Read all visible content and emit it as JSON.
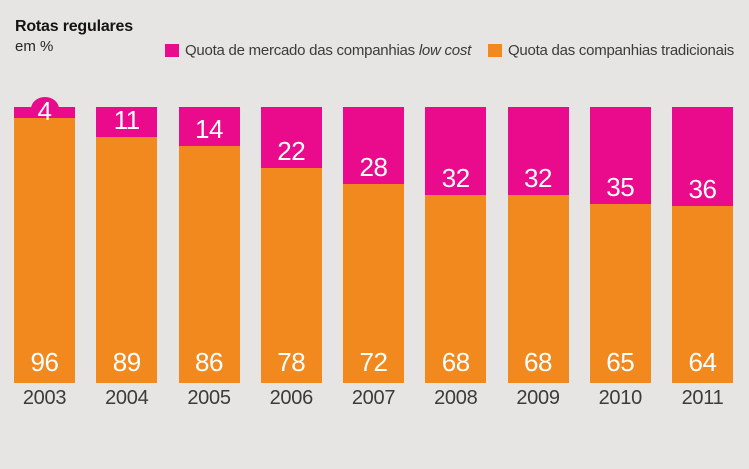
{
  "header": {
    "title": "Rotas regulares",
    "subtitle": "em %"
  },
  "legend": {
    "lowcost": {
      "text": "Quota de mercado das companhias ",
      "italic": "low cost"
    },
    "traditional": {
      "text": "Quota das companhias tradicionais"
    }
  },
  "colors": {
    "lowcost": "#E90B8C",
    "traditional": "#F1891F",
    "background": "#E6E5E3",
    "value_label": "#FFFFFF",
    "axis_label": "#3B3B3A",
    "title": "#141414"
  },
  "chart_data": {
    "type": "bar",
    "stacked": true,
    "unit": "%",
    "title": "Rotas regulares",
    "subtitle": "em %",
    "categories": [
      "2003",
      "2004",
      "2005",
      "2006",
      "2007",
      "2008",
      "2009",
      "2010",
      "2011"
    ],
    "series": [
      {
        "name": "Quota de mercado das companhias low cost",
        "color": "#E90B8C",
        "values": [
          4,
          11,
          14,
          22,
          28,
          32,
          32,
          35,
          36
        ]
      },
      {
        "name": "Quota das companhias tradicionais",
        "color": "#F1891F",
        "values": [
          96,
          89,
          86,
          78,
          72,
          68,
          68,
          65,
          64
        ]
      }
    ],
    "ylim": [
      0,
      100
    ],
    "grid": false,
    "value_labels": "inside-white",
    "legend_position": "top",
    "bump_categories": [
      "2003"
    ]
  }
}
